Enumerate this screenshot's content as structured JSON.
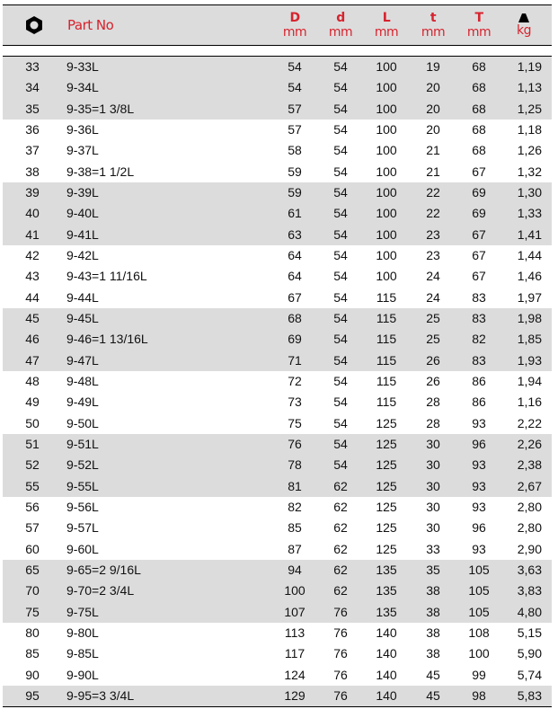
{
  "header": {
    "size_icon": "hexagon-nut-icon",
    "part_no": "Part No",
    "columns": [
      {
        "top": "D",
        "unit": "mm"
      },
      {
        "top": "d",
        "unit": "mm"
      },
      {
        "top": "L",
        "unit": "mm"
      },
      {
        "top": "t",
        "unit": "mm"
      },
      {
        "top": "T",
        "unit": "mm"
      },
      {
        "top_icon": "weight-icon",
        "unit": "kg"
      }
    ]
  },
  "colors": {
    "header_text": "#d6232e",
    "band": "#dcdcdc"
  },
  "rows": [
    [
      "33",
      "9-33L",
      "54",
      "54",
      "100",
      "19",
      "68",
      "1,19"
    ],
    [
      "34",
      "9-34L",
      "54",
      "54",
      "100",
      "20",
      "68",
      "1,13"
    ],
    [
      "35",
      "9-35=1 3/8L",
      "57",
      "54",
      "100",
      "20",
      "68",
      "1,25"
    ],
    [
      "36",
      "9-36L",
      "57",
      "54",
      "100",
      "20",
      "68",
      "1,18"
    ],
    [
      "37",
      "9-37L",
      "58",
      "54",
      "100",
      "21",
      "68",
      "1,26"
    ],
    [
      "38",
      "9-38=1 1/2L",
      "59",
      "54",
      "100",
      "21",
      "67",
      "1,32"
    ],
    [
      "39",
      "9-39L",
      "59",
      "54",
      "100",
      "22",
      "69",
      "1,30"
    ],
    [
      "40",
      "9-40L",
      "61",
      "54",
      "100",
      "22",
      "69",
      "1,33"
    ],
    [
      "41",
      "9-41L",
      "63",
      "54",
      "100",
      "23",
      "67",
      "1,41"
    ],
    [
      "42",
      "9-42L",
      "64",
      "54",
      "100",
      "23",
      "67",
      "1,44"
    ],
    [
      "43",
      "9-43=1 11/16L",
      "64",
      "54",
      "100",
      "24",
      "67",
      "1,46"
    ],
    [
      "44",
      "9-44L",
      "67",
      "54",
      "115",
      "24",
      "83",
      "1,97"
    ],
    [
      "45",
      "9-45L",
      "68",
      "54",
      "115",
      "25",
      "83",
      "1,98"
    ],
    [
      "46",
      "9-46=1 13/16L",
      "69",
      "54",
      "115",
      "25",
      "82",
      "1,85"
    ],
    [
      "47",
      "9-47L",
      "71",
      "54",
      "115",
      "26",
      "83",
      "1,93"
    ],
    [
      "48",
      "9-48L",
      "72",
      "54",
      "115",
      "26",
      "86",
      "1,94"
    ],
    [
      "49",
      "9-49L",
      "73",
      "54",
      "115",
      "28",
      "86",
      "1,16"
    ],
    [
      "50",
      "9-50L",
      "75",
      "54",
      "125",
      "28",
      "93",
      "2,22"
    ],
    [
      "51",
      "9-51L",
      "76",
      "54",
      "125",
      "30",
      "96",
      "2,26"
    ],
    [
      "52",
      "9-52L",
      "78",
      "54",
      "125",
      "30",
      "93",
      "2,38"
    ],
    [
      "55",
      "9-55L",
      "81",
      "62",
      "125",
      "30",
      "93",
      "2,67"
    ],
    [
      "56",
      "9-56L",
      "82",
      "62",
      "125",
      "30",
      "93",
      "2,80"
    ],
    [
      "57",
      "9-57L",
      "85",
      "62",
      "125",
      "30",
      "96",
      "2,80"
    ],
    [
      "60",
      "9-60L",
      "87",
      "62",
      "125",
      "33",
      "93",
      "2,90"
    ],
    [
      "65",
      "9-65=2 9/16L",
      "94",
      "62",
      "135",
      "35",
      "105",
      "3,63"
    ],
    [
      "70",
      "9-70=2 3/4L",
      "100",
      "62",
      "135",
      "38",
      "105",
      "3,83"
    ],
    [
      "75",
      "9-75L",
      "107",
      "76",
      "135",
      "38",
      "105",
      "4,80"
    ],
    [
      "80",
      "9-80L",
      "113",
      "76",
      "140",
      "38",
      "108",
      "5,15"
    ],
    [
      "85",
      "9-85L",
      "117",
      "76",
      "140",
      "38",
      "100",
      "5,90"
    ],
    [
      "90",
      "9-90L",
      "124",
      "76",
      "140",
      "45",
      "99",
      "5,74"
    ],
    [
      "95",
      "9-95=3 3/4L",
      "129",
      "76",
      "140",
      "45",
      "98",
      "5,83"
    ]
  ]
}
